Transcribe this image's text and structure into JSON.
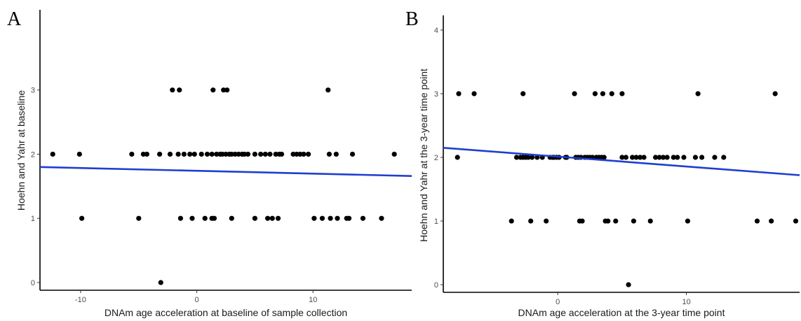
{
  "chart_data": [
    {
      "type": "scatter",
      "panel_label": "A",
      "xlabel": "DNAm age acceleration at baseline of sample collection",
      "ylabel": "Hoehn and Yahr at baseline",
      "xlim": [
        -13.5,
        18.5
      ],
      "ylim": [
        -0.12,
        4.25
      ],
      "xticks": [
        -10,
        0,
        10
      ],
      "yticks": [
        0,
        1,
        2,
        3
      ],
      "grid": false,
      "legend": "none",
      "point_color": "#000000",
      "line_color": "#1f3fcf",
      "trendline": {
        "x": [
          -13.5,
          18.5
        ],
        "y": [
          1.8,
          1.66
        ]
      },
      "points": [
        {
          "x": -12.4,
          "y": 2
        },
        {
          "x": -10.1,
          "y": 2
        },
        {
          "x": -9.9,
          "y": 1
        },
        {
          "x": -5.6,
          "y": 2
        },
        {
          "x": -5.0,
          "y": 1
        },
        {
          "x": -4.6,
          "y": 2
        },
        {
          "x": -4.3,
          "y": 2
        },
        {
          "x": -3.2,
          "y": 2
        },
        {
          "x": -3.1,
          "y": 0
        },
        {
          "x": -2.3,
          "y": 2
        },
        {
          "x": -2.1,
          "y": 3
        },
        {
          "x": -1.6,
          "y": 2
        },
        {
          "x": -1.5,
          "y": 3
        },
        {
          "x": -1.4,
          "y": 1
        },
        {
          "x": -1.1,
          "y": 2
        },
        {
          "x": -0.6,
          "y": 2
        },
        {
          "x": -0.4,
          "y": 1
        },
        {
          "x": -0.2,
          "y": 2
        },
        {
          "x": 0.4,
          "y": 2
        },
        {
          "x": 0.7,
          "y": 1
        },
        {
          "x": 0.9,
          "y": 2
        },
        {
          "x": 1.3,
          "y": 2
        },
        {
          "x": 1.3,
          "y": 1
        },
        {
          "x": 1.4,
          "y": 3
        },
        {
          "x": 1.5,
          "y": 1
        },
        {
          "x": 1.7,
          "y": 2
        },
        {
          "x": 2.0,
          "y": 2
        },
        {
          "x": 2.2,
          "y": 2
        },
        {
          "x": 2.3,
          "y": 3
        },
        {
          "x": 2.5,
          "y": 2
        },
        {
          "x": 2.6,
          "y": 3
        },
        {
          "x": 2.8,
          "y": 2
        },
        {
          "x": 3.0,
          "y": 2
        },
        {
          "x": 3.0,
          "y": 1
        },
        {
          "x": 3.3,
          "y": 2
        },
        {
          "x": 3.6,
          "y": 2
        },
        {
          "x": 3.9,
          "y": 2
        },
        {
          "x": 4.1,
          "y": 2
        },
        {
          "x": 4.4,
          "y": 2
        },
        {
          "x": 5.0,
          "y": 2
        },
        {
          "x": 5.0,
          "y": 1
        },
        {
          "x": 5.5,
          "y": 2
        },
        {
          "x": 5.9,
          "y": 2
        },
        {
          "x": 6.1,
          "y": 1
        },
        {
          "x": 6.3,
          "y": 2
        },
        {
          "x": 6.5,
          "y": 1
        },
        {
          "x": 6.8,
          "y": 2
        },
        {
          "x": 7.0,
          "y": 1
        },
        {
          "x": 7.1,
          "y": 2
        },
        {
          "x": 7.3,
          "y": 2
        },
        {
          "x": 8.3,
          "y": 2
        },
        {
          "x": 8.6,
          "y": 2
        },
        {
          "x": 8.9,
          "y": 2
        },
        {
          "x": 9.2,
          "y": 2
        },
        {
          "x": 9.6,
          "y": 2
        },
        {
          "x": 10.1,
          "y": 1
        },
        {
          "x": 10.8,
          "y": 1
        },
        {
          "x": 11.3,
          "y": 3
        },
        {
          "x": 11.4,
          "y": 2
        },
        {
          "x": 11.5,
          "y": 1
        },
        {
          "x": 12.0,
          "y": 2
        },
        {
          "x": 12.1,
          "y": 1
        },
        {
          "x": 12.9,
          "y": 1
        },
        {
          "x": 13.1,
          "y": 1
        },
        {
          "x": 13.4,
          "y": 2
        },
        {
          "x": 14.3,
          "y": 1
        },
        {
          "x": 15.9,
          "y": 1
        },
        {
          "x": 17.0,
          "y": 2
        }
      ]
    },
    {
      "type": "scatter",
      "panel_label": "B",
      "xlabel": "DNAm age acceleration at the 3-year time point",
      "ylabel": "Hoehn and Yahr at the 3-year time point",
      "xlim": [
        -8.9,
        18.8
      ],
      "ylim": [
        -0.12,
        4.23
      ],
      "xticks": [
        0,
        10
      ],
      "yticks": [
        0,
        1,
        2,
        3,
        4
      ],
      "grid": false,
      "legend": "none",
      "point_color": "#000000",
      "line_color": "#1f3fcf",
      "trendline": {
        "x": [
          -8.9,
          18.8
        ],
        "y": [
          2.15,
          1.72
        ]
      },
      "points": [
        {
          "x": -7.8,
          "y": 2
        },
        {
          "x": -7.7,
          "y": 3
        },
        {
          "x": -6.5,
          "y": 3
        },
        {
          "x": -3.6,
          "y": 1
        },
        {
          "x": -3.2,
          "y": 2
        },
        {
          "x": -2.9,
          "y": 2
        },
        {
          "x": -2.7,
          "y": 3
        },
        {
          "x": -2.7,
          "y": 2
        },
        {
          "x": -2.5,
          "y": 2
        },
        {
          "x": -2.3,
          "y": 2
        },
        {
          "x": -2.1,
          "y": 1
        },
        {
          "x": -2.0,
          "y": 2
        },
        {
          "x": -1.6,
          "y": 2
        },
        {
          "x": -1.2,
          "y": 2
        },
        {
          "x": -0.9,
          "y": 1
        },
        {
          "x": -0.6,
          "y": 2
        },
        {
          "x": -0.4,
          "y": 2
        },
        {
          "x": -0.3,
          "y": 2
        },
        {
          "x": -0.1,
          "y": 2
        },
        {
          "x": 0.1,
          "y": 2
        },
        {
          "x": 0.6,
          "y": 2
        },
        {
          "x": 0.7,
          "y": 2
        },
        {
          "x": 1.3,
          "y": 3
        },
        {
          "x": 1.4,
          "y": 2
        },
        {
          "x": 1.6,
          "y": 2
        },
        {
          "x": 1.7,
          "y": 1
        },
        {
          "x": 1.8,
          "y": 2
        },
        {
          "x": 1.9,
          "y": 1
        },
        {
          "x": 2.1,
          "y": 2
        },
        {
          "x": 2.3,
          "y": 2
        },
        {
          "x": 2.5,
          "y": 2
        },
        {
          "x": 2.7,
          "y": 2
        },
        {
          "x": 2.9,
          "y": 3
        },
        {
          "x": 3.0,
          "y": 2
        },
        {
          "x": 3.2,
          "y": 2
        },
        {
          "x": 3.4,
          "y": 2
        },
        {
          "x": 3.5,
          "y": 3
        },
        {
          "x": 3.6,
          "y": 2
        },
        {
          "x": 3.7,
          "y": 1
        },
        {
          "x": 3.9,
          "y": 1
        },
        {
          "x": 4.2,
          "y": 3
        },
        {
          "x": 4.5,
          "y": 1
        },
        {
          "x": 5.0,
          "y": 3
        },
        {
          "x": 5.0,
          "y": 2
        },
        {
          "x": 5.3,
          "y": 2
        },
        {
          "x": 5.5,
          "y": 0
        },
        {
          "x": 5.8,
          "y": 2
        },
        {
          "x": 5.9,
          "y": 1
        },
        {
          "x": 6.1,
          "y": 2
        },
        {
          "x": 6.4,
          "y": 2
        },
        {
          "x": 6.7,
          "y": 2
        },
        {
          "x": 7.2,
          "y": 1
        },
        {
          "x": 7.6,
          "y": 2
        },
        {
          "x": 7.9,
          "y": 2
        },
        {
          "x": 8.2,
          "y": 2
        },
        {
          "x": 8.5,
          "y": 2
        },
        {
          "x": 9.0,
          "y": 2
        },
        {
          "x": 9.3,
          "y": 2
        },
        {
          "x": 9.8,
          "y": 2
        },
        {
          "x": 10.1,
          "y": 1
        },
        {
          "x": 10.7,
          "y": 2
        },
        {
          "x": 10.9,
          "y": 3
        },
        {
          "x": 11.2,
          "y": 2
        },
        {
          "x": 12.2,
          "y": 2
        },
        {
          "x": 12.9,
          "y": 2
        },
        {
          "x": 15.5,
          "y": 1
        },
        {
          "x": 16.6,
          "y": 1
        },
        {
          "x": 16.9,
          "y": 3
        },
        {
          "x": 18.5,
          "y": 1
        }
      ]
    }
  ]
}
